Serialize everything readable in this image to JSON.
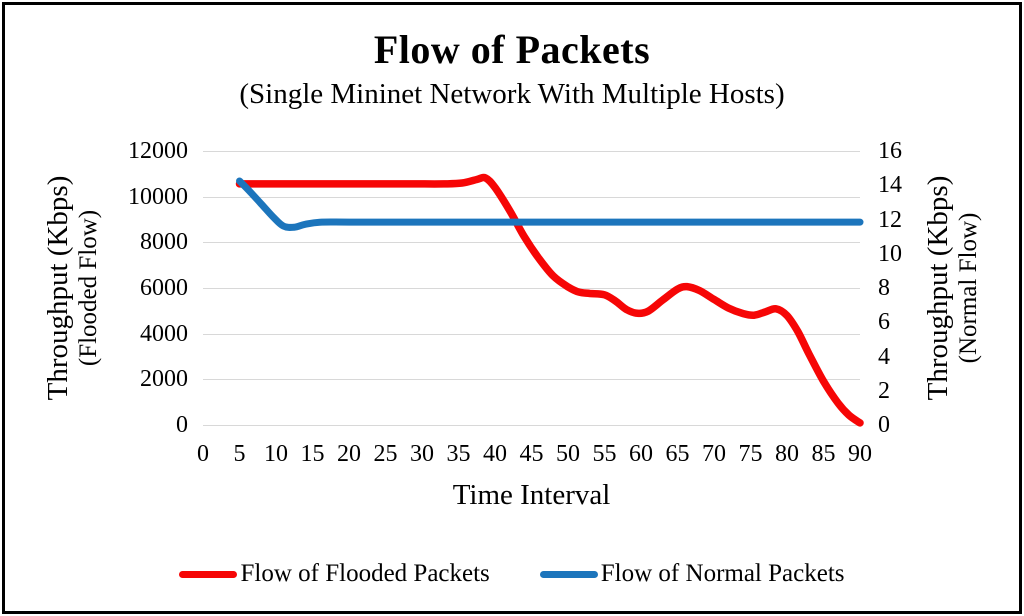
{
  "title": "Flow of Packets",
  "subtitle": "(Single Mininet Network With Multiple Hosts)",
  "colors": {
    "flooded_red": "#f60606",
    "normal_blue": "#1c75bc",
    "gridline": "#d8d8d8",
    "frame_border": "#000000"
  },
  "left_axis": {
    "title": "Throughput (Kbps)",
    "subtitle": "(Flooded Flow)",
    "ticks": [
      0,
      2000,
      4000,
      6000,
      8000,
      10000,
      12000
    ],
    "min": 0,
    "max": 12000
  },
  "right_axis": {
    "title": "Throughput (Kbps)",
    "subtitle": "(Normal Flow)",
    "ticks": [
      0,
      2,
      4,
      6,
      8,
      10,
      12,
      14,
      16
    ],
    "min": 0,
    "max": 16
  },
  "x_axis": {
    "title": "Time Interval",
    "ticks": [
      0,
      5,
      10,
      15,
      20,
      25,
      30,
      35,
      40,
      45,
      50,
      55,
      60,
      65,
      70,
      75,
      80,
      85,
      90
    ],
    "min": 0,
    "max": 90
  },
  "legend": [
    {
      "label": "Flow of Flooded Packets",
      "color_key": "flooded_red"
    },
    {
      "label": "Flow of Normal Packets",
      "color_key": "normal_blue"
    }
  ],
  "chart_data": {
    "type": "line",
    "title": "Flow of Packets",
    "subtitle": "(Single Mininet Network With Multiple Hosts)",
    "xlabel": "Time Interval",
    "x_range": [
      0,
      90
    ],
    "grid": "horizontal",
    "legend_position": "bottom",
    "series": [
      {
        "name": "Flow of Flooded Packets",
        "axis": "left",
        "axis_label": "Throughput (Kbps) (Flooded Flow)",
        "ylim": [
          0,
          12000
        ],
        "color_key": "flooded_red",
        "stroke_width": 7.5,
        "points": [
          [
            5,
            10560
          ],
          [
            9,
            10560
          ],
          [
            13,
            10560
          ],
          [
            17,
            10560
          ],
          [
            21,
            10560
          ],
          [
            25,
            10560
          ],
          [
            29,
            10560
          ],
          [
            33,
            10560
          ],
          [
            35.5,
            10600
          ],
          [
            37.5,
            10750
          ],
          [
            38.7,
            10820
          ],
          [
            40,
            10400
          ],
          [
            42,
            9400
          ],
          [
            44,
            8250
          ],
          [
            46,
            7300
          ],
          [
            48,
            6520
          ],
          [
            50,
            6050
          ],
          [
            51.5,
            5820
          ],
          [
            53,
            5760
          ],
          [
            55,
            5700
          ],
          [
            56.5,
            5430
          ],
          [
            58,
            5060
          ],
          [
            59.5,
            4890
          ],
          [
            61,
            4990
          ],
          [
            63,
            5480
          ],
          [
            65,
            5950
          ],
          [
            66.3,
            6060
          ],
          [
            68,
            5890
          ],
          [
            70,
            5500
          ],
          [
            72,
            5120
          ],
          [
            74,
            4880
          ],
          [
            75.5,
            4810
          ],
          [
            77,
            4950
          ],
          [
            78.5,
            5090
          ],
          [
            80,
            4790
          ],
          [
            81.5,
            4080
          ],
          [
            83,
            3120
          ],
          [
            85,
            1920
          ],
          [
            87,
            960
          ],
          [
            88.5,
            430
          ],
          [
            90,
            90
          ]
        ]
      },
      {
        "name": "Flow of Normal Packets",
        "axis": "right",
        "axis_label": "Throughput (Kbps) (Normal Flow)",
        "ylim": [
          0,
          16
        ],
        "color_key": "normal_blue",
        "stroke_width": 7,
        "points": [
          [
            5,
            14.25
          ],
          [
            6.5,
            13.6
          ],
          [
            8,
            12.9
          ],
          [
            9.5,
            12.2
          ],
          [
            11,
            11.62
          ],
          [
            12.5,
            11.55
          ],
          [
            14,
            11.72
          ],
          [
            16,
            11.84
          ],
          [
            20,
            11.85
          ],
          [
            30,
            11.85
          ],
          [
            40,
            11.85
          ],
          [
            50,
            11.85
          ],
          [
            60,
            11.85
          ],
          [
            70,
            11.85
          ],
          [
            80,
            11.85
          ],
          [
            90,
            11.85
          ]
        ]
      }
    ]
  }
}
